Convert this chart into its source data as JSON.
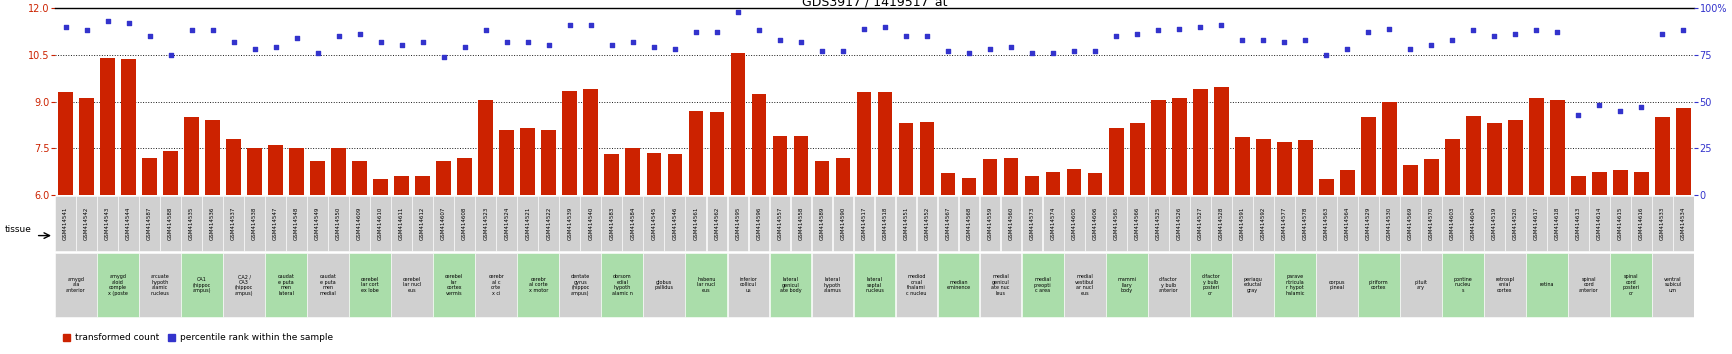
{
  "title": "GDS3917 / 1419517_at",
  "ylim_left": [
    6,
    12
  ],
  "ylim_right": [
    0,
    100
  ],
  "yticks_left": [
    6,
    7.5,
    9,
    10.5,
    12
  ],
  "yticks_right": [
    0,
    25,
    50,
    75,
    100
  ],
  "hlines": [
    7.5,
    9.0,
    10.5
  ],
  "samples": [
    "GSM414541",
    "GSM414542",
    "GSM414543",
    "GSM414544",
    "GSM414587",
    "GSM414588",
    "GSM414535",
    "GSM414536",
    "GSM414537",
    "GSM414538",
    "GSM414547",
    "GSM414548",
    "GSM414549",
    "GSM414550",
    "GSM414609",
    "GSM414610",
    "GSM414611",
    "GSM414612",
    "GSM414607",
    "GSM414608",
    "GSM414523",
    "GSM414524",
    "GSM414521",
    "GSM414522",
    "GSM414539",
    "GSM414540",
    "GSM414583",
    "GSM414584",
    "GSM414545",
    "GSM414546",
    "GSM414561",
    "GSM414562",
    "GSM414595",
    "GSM414596",
    "GSM414557",
    "GSM414558",
    "GSM414589",
    "GSM414590",
    "GSM414517",
    "GSM414518",
    "GSM414551",
    "GSM414552",
    "GSM414567",
    "GSM414568",
    "GSM414559",
    "GSM414560",
    "GSM414573",
    "GSM414574",
    "GSM414605",
    "GSM414606",
    "GSM414565",
    "GSM414566",
    "GSM414525",
    "GSM414526",
    "GSM414527",
    "GSM414528",
    "GSM414591",
    "GSM414592",
    "GSM414577",
    "GSM414578",
    "GSM414563",
    "GSM414564",
    "GSM414529",
    "GSM414530",
    "GSM414569",
    "GSM414570",
    "GSM414603",
    "GSM414604",
    "GSM414519",
    "GSM414520",
    "GSM414617",
    "GSM414618",
    "GSM414613",
    "GSM414614",
    "GSM414615",
    "GSM414616",
    "GSM414533",
    "GSM414534"
  ],
  "bar_values": [
    9.3,
    9.1,
    10.4,
    10.35,
    7.2,
    7.4,
    8.5,
    8.4,
    7.8,
    7.5,
    7.6,
    7.5,
    7.1,
    7.5,
    7.1,
    6.5,
    6.6,
    6.6,
    7.1,
    7.2,
    9.05,
    8.1,
    8.15,
    8.1,
    9.35,
    9.4,
    7.3,
    7.5,
    7.35,
    7.3,
    8.7,
    8.65,
    10.55,
    9.25,
    7.9,
    7.9,
    7.1,
    7.2,
    9.3,
    9.3,
    8.3,
    8.35,
    6.7,
    6.55,
    7.15,
    7.2,
    6.6,
    6.75,
    6.85,
    6.7,
    8.15,
    8.3,
    9.05,
    9.1,
    9.4,
    9.45,
    7.85,
    7.8,
    7.7,
    7.75,
    6.5,
    6.8,
    8.5,
    9.0,
    6.95,
    7.15,
    7.8,
    8.55,
    8.3,
    8.4,
    9.1,
    9.05,
    6.6,
    6.75,
    6.8,
    6.75,
    8.5,
    8.8
  ],
  "scatter_values": [
    90,
    88,
    93,
    92,
    85,
    75,
    88,
    88,
    82,
    78,
    79,
    84,
    76,
    85,
    86,
    82,
    80,
    82,
    74,
    79,
    88,
    82,
    82,
    80,
    91,
    91,
    80,
    82,
    79,
    78,
    87,
    87,
    98,
    88,
    83,
    82,
    77,
    77,
    89,
    90,
    85,
    85,
    77,
    76,
    78,
    79,
    76,
    76,
    77,
    77,
    85,
    86,
    88,
    89,
    90,
    91,
    83,
    83,
    82,
    83,
    75,
    78,
    87,
    89,
    78,
    80,
    83,
    88,
    85,
    86,
    88,
    87,
    43,
    48,
    45,
    47,
    86,
    88
  ],
  "tissue_groups": [
    [
      0,
      1,
      "amygd\nala\nanterior"
    ],
    [
      2,
      3,
      "amygd\naloid\ncomple\nx (poste"
    ],
    [
      4,
      5,
      "arcuate\nhypoth\nalamic\nnucleus"
    ],
    [
      6,
      7,
      "CA1\n(hippoc\nampus)"
    ],
    [
      8,
      9,
      "CA2 /\nCA3\n(hippoc\nampus)"
    ],
    [
      10,
      11,
      "caudat\ne puta\nmen\nlateral"
    ],
    [
      12,
      13,
      "caudat\ne puta\nmen\nmedial"
    ],
    [
      14,
      15,
      "cerebel\nlar cort\nex lobe"
    ],
    [
      16,
      17,
      "cerebel\nlar nucl\neus"
    ],
    [
      18,
      19,
      "cerebel\nlar\ncortex\nvermis"
    ],
    [
      20,
      21,
      "cerebr\nal c\norte\nx ci"
    ],
    [
      22,
      23,
      "cerebr\nal corte\nx motor"
    ],
    [
      24,
      25,
      "dentate\ngyrus\n(hippoc\nampus)"
    ],
    [
      26,
      27,
      "dorsom\nedial\nhypoth\nalamic n"
    ],
    [
      28,
      29,
      "globus\npallidus"
    ],
    [
      30,
      31,
      "habenu\nlar nucl\neus"
    ],
    [
      32,
      33,
      "inferior\ncollicul\nus"
    ],
    [
      34,
      35,
      "lateral\ngenicul\nate body"
    ],
    [
      36,
      37,
      "lateral\nhypoth\nalamus"
    ],
    [
      38,
      39,
      "lateral\nseptal\nnucleus"
    ],
    [
      40,
      41,
      "mediod\norsal\nthalami\nc nucleu"
    ],
    [
      42,
      43,
      "median\neminence"
    ],
    [
      44,
      45,
      "medial\ngenicul\nate nuc\nleus"
    ],
    [
      46,
      47,
      "medial\npreopti\nc area"
    ],
    [
      48,
      49,
      "medial\nvestibul\nar nucl\neus"
    ],
    [
      50,
      51,
      "mammi\nllary\nbody"
    ],
    [
      52,
      53,
      "olfactor\ny bulb\nanterior"
    ],
    [
      54,
      55,
      "olfactor\ny bulb\nposteri\nor"
    ],
    [
      56,
      57,
      "periaqu\neductal\ngray"
    ],
    [
      58,
      59,
      "parave\nntricula\nr hypot\nhalamic"
    ],
    [
      60,
      61,
      "corpus\npineal"
    ],
    [
      62,
      63,
      "piriform\ncortex"
    ],
    [
      64,
      65,
      "pituit\nary"
    ],
    [
      66,
      67,
      "pontine\nnucleu\ns"
    ],
    [
      68,
      69,
      "retrospl\nenial\ncortex"
    ],
    [
      70,
      71,
      "retina"
    ],
    [
      72,
      73,
      "spinal\ncord\nanterior"
    ],
    [
      74,
      75,
      "spinal\ncord\nposteri\nor"
    ],
    [
      76,
      77,
      "ventral\nsubicul\num"
    ]
  ],
  "bar_color": "#cc2200",
  "scatter_color": "#3333cc",
  "gsm_bg_color": "#d0d0d0",
  "tissue_bg_colors": [
    "#d0d0d0",
    "#aaddaa"
  ]
}
